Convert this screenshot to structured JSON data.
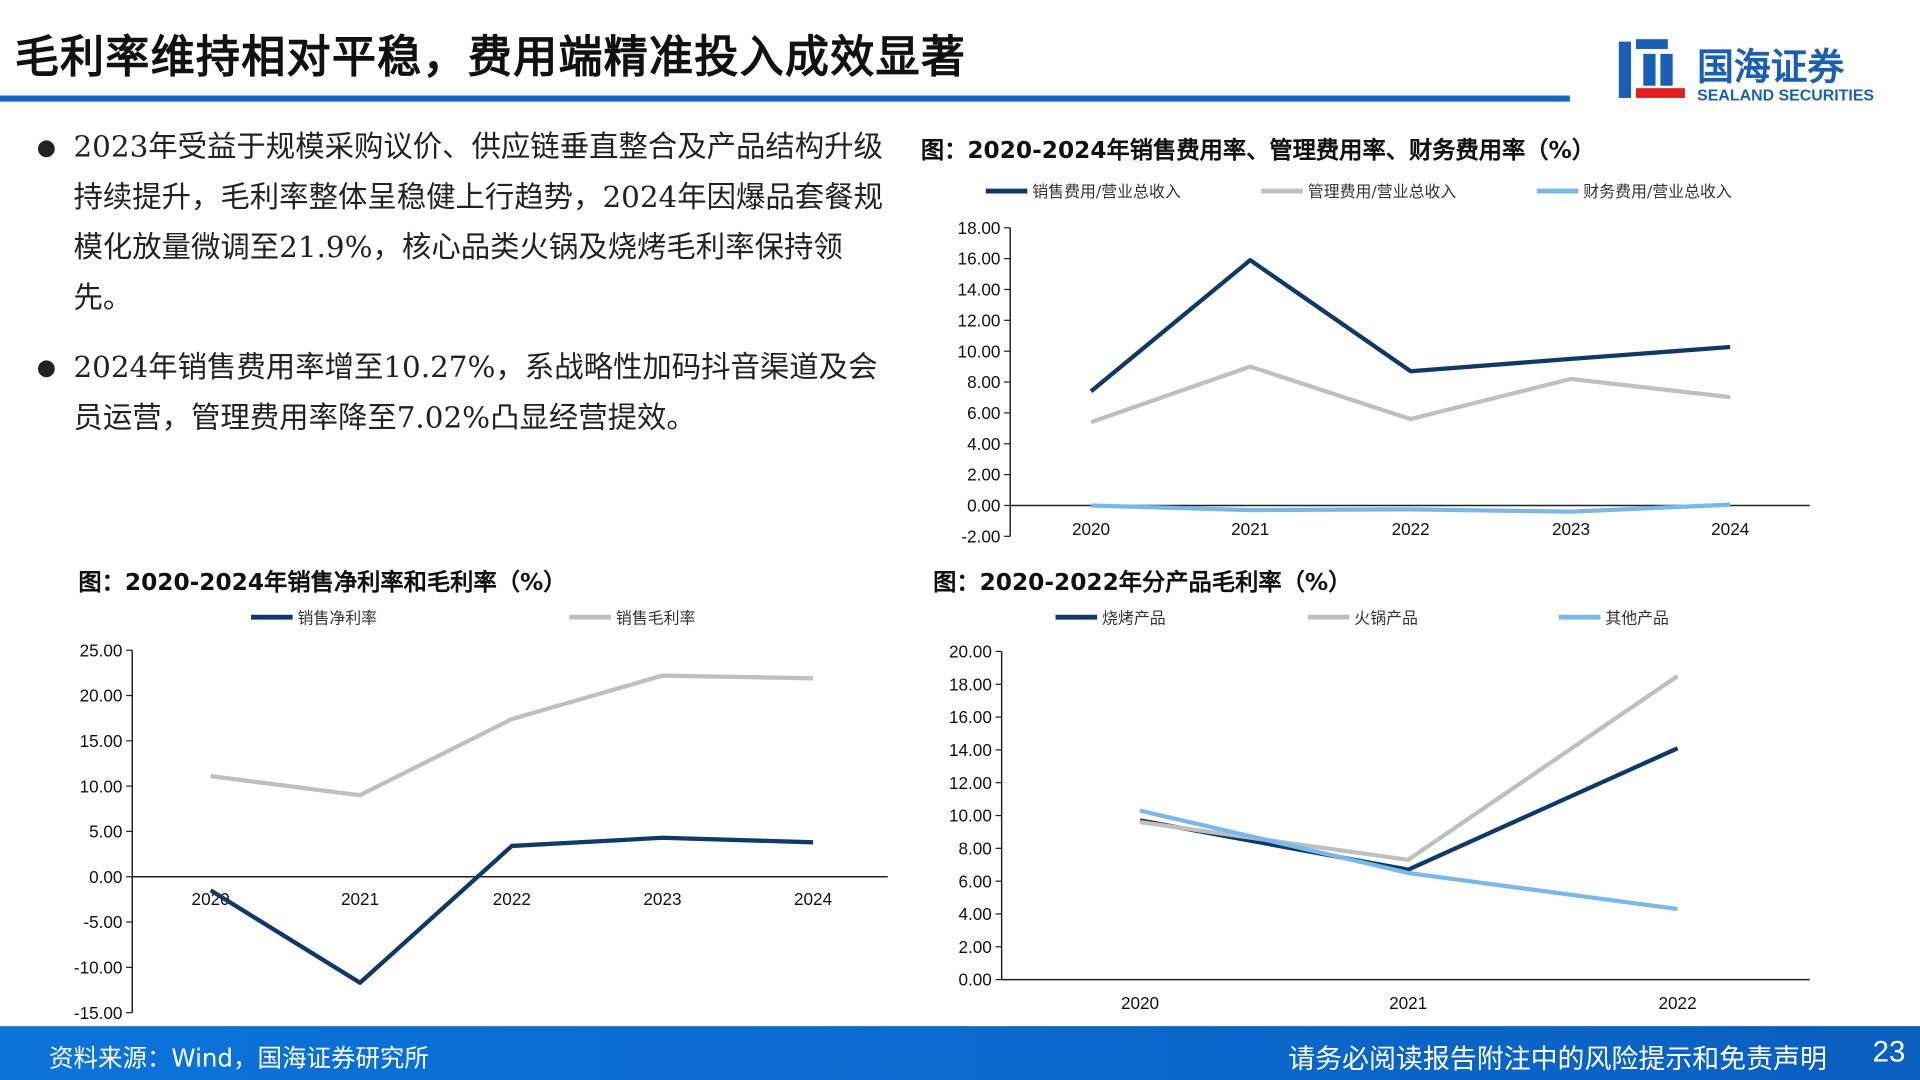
{
  "header": {
    "title": "毛利率维持相对平稳，费用端精准投入成效显著",
    "logo_cn": "国海证券",
    "logo_en": "SEALAND SECURITIES"
  },
  "bullets": [
    "2023年受益于规模采购议价、供应链垂直整合及产品结构升级持续提升，毛利率整体呈稳健上行趋势，2024年因爆品套餐规模化放量微调至21.9%，核心品类火锅及烧烤毛利率保持领先。",
    "2024年销售费用率增至10.27%，系战略性加码抖音渠道及会员运营，管理费用率降至7.02%凸显经营提效。"
  ],
  "colors": {
    "navy": "#0d3a66",
    "gray": "#bfbfbf",
    "lightblue": "#79b9ea",
    "brand": "#1565c0"
  },
  "chart_data": [
    {
      "type": "line",
      "title": "图：2020-2024年销售费用率、管理费用率、财务费用率（%）",
      "categories": [
        "2020",
        "2021",
        "2022",
        "2023",
        "2024"
      ],
      "ylim": [
        -2,
        18
      ],
      "yticks": [
        -2,
        0,
        2,
        4,
        6,
        8,
        10,
        12,
        14,
        16,
        18
      ],
      "legend": "top",
      "series": [
        {
          "name": "销售费用/营业总收入",
          "color": "#0d3a66",
          "values": [
            7.4,
            15.9,
            8.7,
            9.5,
            10.27
          ]
        },
        {
          "name": "管理费用/营业总收入",
          "color": "#bfbfbf",
          "values": [
            5.4,
            9.0,
            5.6,
            8.2,
            7.02
          ]
        },
        {
          "name": "财务费用/营业总收入",
          "color": "#79b9ea",
          "values": [
            0.0,
            -0.3,
            -0.25,
            -0.4,
            0.05
          ]
        }
      ]
    },
    {
      "type": "line",
      "title": "图：2020-2024年销售净利率和毛利率（%）",
      "categories": [
        "2020",
        "2021",
        "2022",
        "2023",
        "2024"
      ],
      "ylim": [
        -15,
        25
      ],
      "yticks": [
        -15,
        -10,
        -5,
        0,
        5,
        10,
        15,
        20,
        25
      ],
      "legend": "top",
      "series": [
        {
          "name": "销售净利率",
          "color": "#0d3a66",
          "values": [
            -1.5,
            -11.7,
            3.4,
            4.3,
            3.8
          ]
        },
        {
          "name": "销售毛利率",
          "color": "#bfbfbf",
          "values": [
            11.1,
            9.0,
            17.4,
            22.2,
            21.9
          ]
        }
      ]
    },
    {
      "type": "line",
      "title": "图：2020-2022年分产品毛利率（%）",
      "categories": [
        "2020",
        "2021",
        "2022"
      ],
      "ylim": [
        0,
        20
      ],
      "yticks": [
        0,
        2,
        4,
        6,
        8,
        10,
        12,
        14,
        16,
        18,
        20
      ],
      "legend": "top",
      "series": [
        {
          "name": "烧烤产品",
          "color": "#0d3a66",
          "values": [
            9.7,
            6.7,
            14.1
          ]
        },
        {
          "name": "火锅产品",
          "color": "#bfbfbf",
          "values": [
            9.6,
            7.3,
            18.5
          ]
        },
        {
          "name": "其他产品",
          "color": "#79b9ea",
          "values": [
            10.3,
            6.5,
            4.3
          ]
        }
      ]
    }
  ],
  "footer": {
    "source": "资料来源：Wind，国海证券研究所",
    "disclaimer": "请务必阅读报告附注中的风险提示和免责声明",
    "page": "23"
  }
}
